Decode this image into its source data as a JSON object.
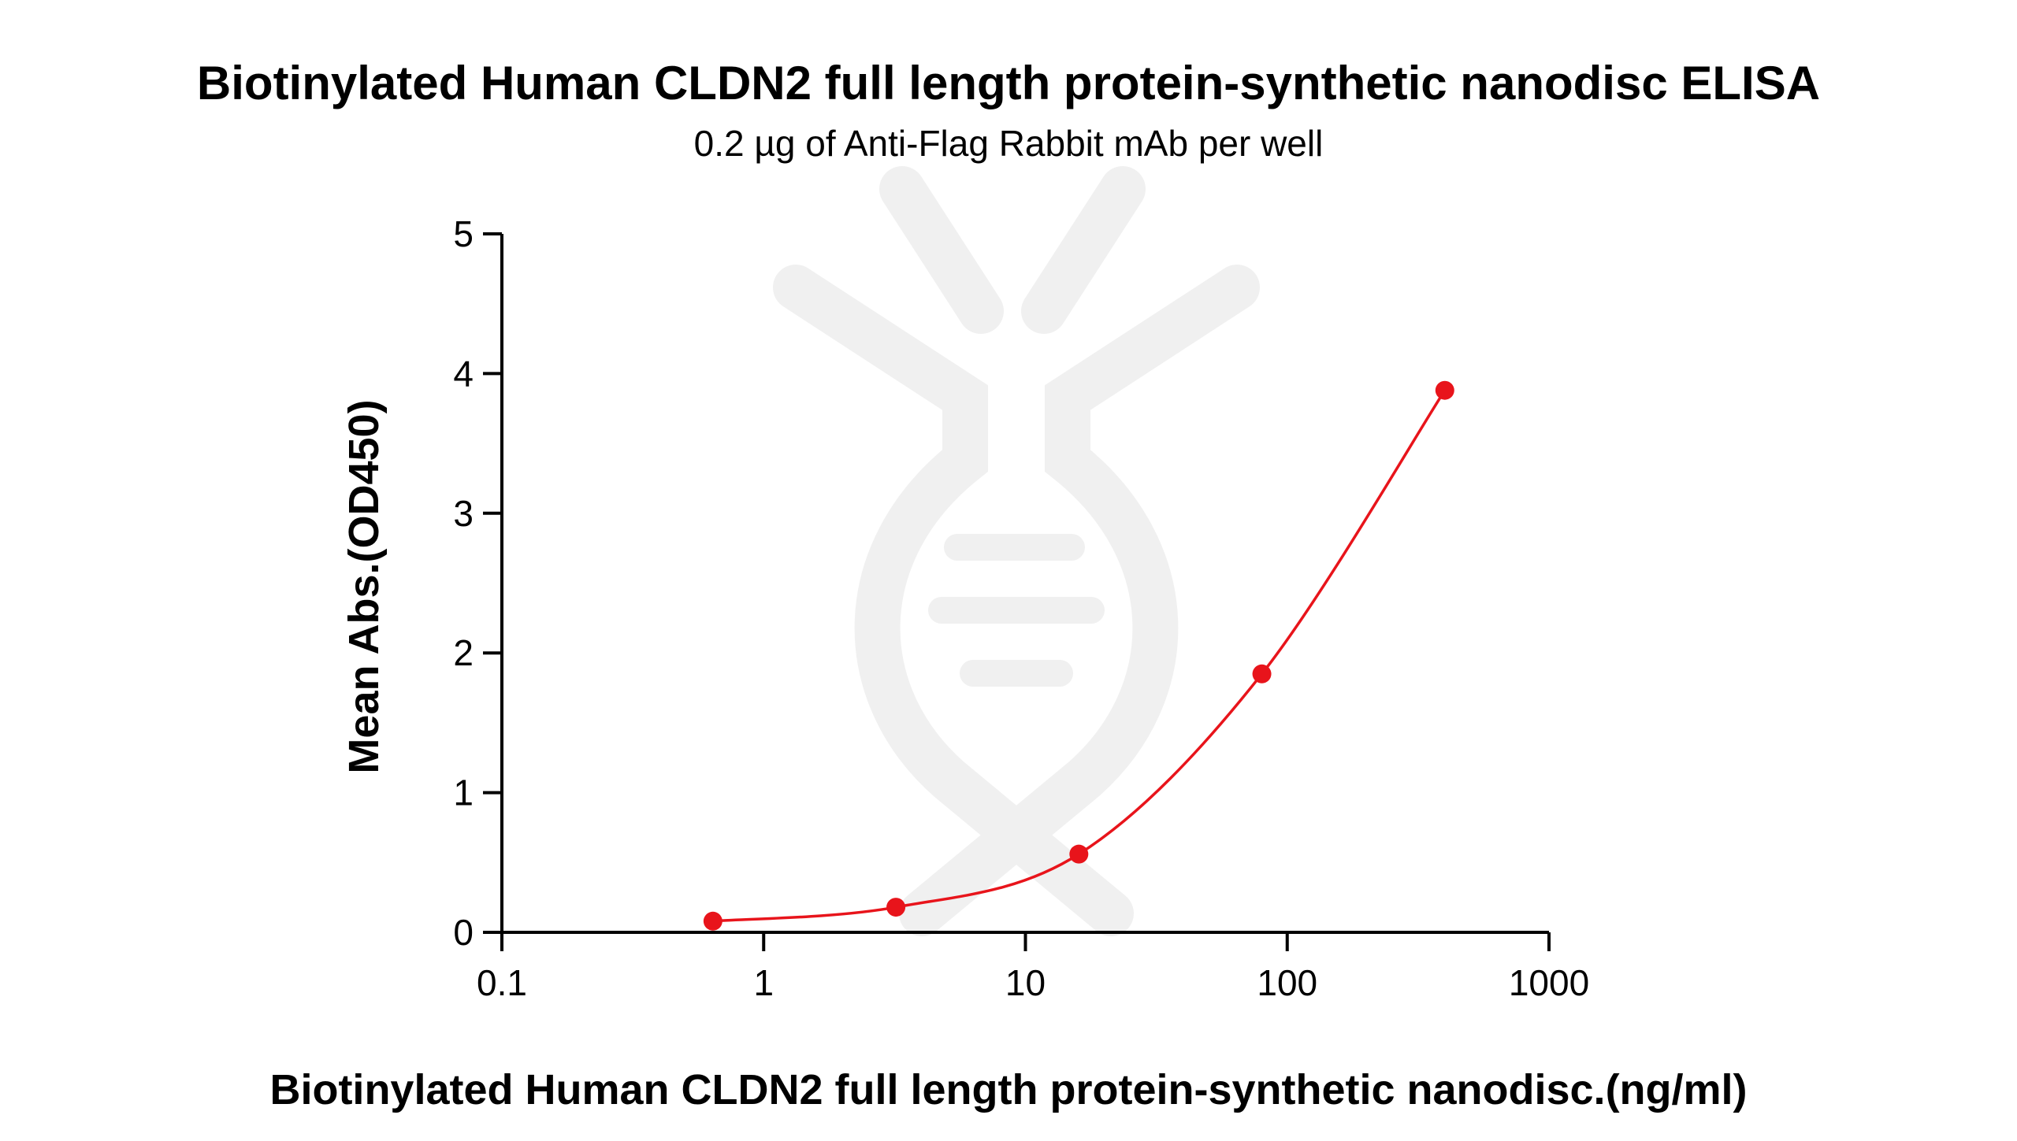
{
  "chart_data": {
    "type": "line",
    "title": "Biotinylated Human CLDN2 full length protein-synthetic nanodisc ELISA",
    "subtitle": "0.2 µg of Anti-Flag Rabbit mAb per well",
    "xlabel": "Biotinylated Human CLDN2 full length protein-synthetic nanodisc.(ng/ml)",
    "ylabel": "Mean Abs.(OD450)",
    "x_scale": "log",
    "xlim": [
      0.1,
      1000
    ],
    "ylim": [
      0,
      5
    ],
    "x_ticks": [
      {
        "value": 0.1,
        "label": "0.1"
      },
      {
        "value": 1,
        "label": "1"
      },
      {
        "value": 10,
        "label": "10"
      },
      {
        "value": 100,
        "label": "100"
      },
      {
        "value": 1000,
        "label": "1000"
      }
    ],
    "y_ticks": [
      {
        "value": 0,
        "label": "0"
      },
      {
        "value": 1,
        "label": "1"
      },
      {
        "value": 2,
        "label": "2"
      },
      {
        "value": 3,
        "label": "3"
      },
      {
        "value": 4,
        "label": "4"
      },
      {
        "value": 5,
        "label": "5"
      }
    ],
    "grid": false,
    "series": [
      {
        "color": "#e8141b",
        "points": [
          {
            "x": 0.64,
            "y": 0.08
          },
          {
            "x": 3.2,
            "y": 0.18
          },
          {
            "x": 16,
            "y": 0.56
          },
          {
            "x": 80,
            "y": 1.85
          },
          {
            "x": 400,
            "y": 3.88
          }
        ]
      }
    ]
  }
}
